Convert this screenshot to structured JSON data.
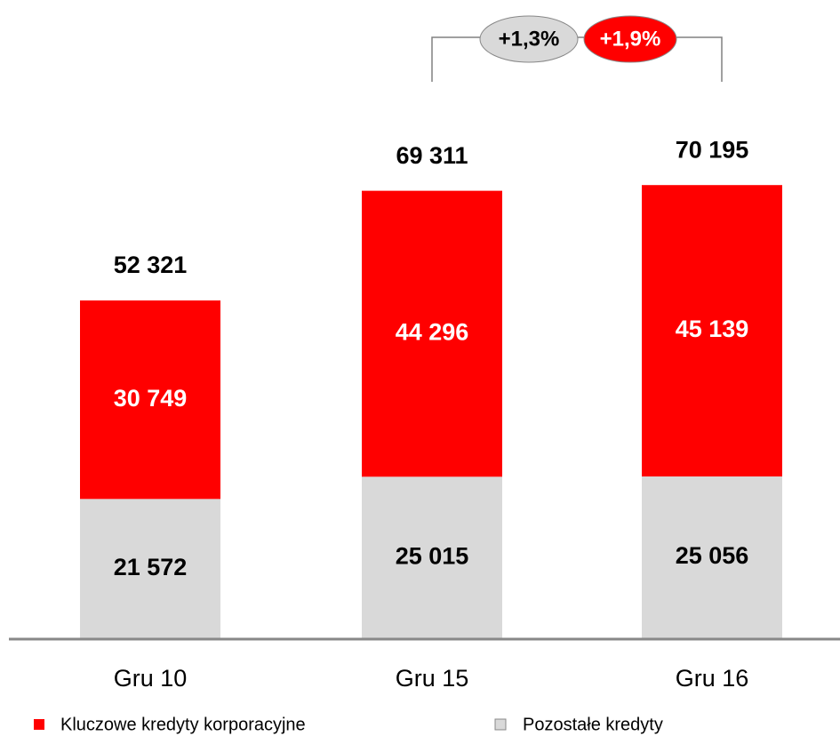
{
  "chart_data": {
    "type": "stacked_bar",
    "categories": [
      "Gru 10",
      "Gru 15",
      "Gru 16"
    ],
    "series": [
      {
        "name": "Kluczowe kredyty korporacyjne",
        "color": "#ff0000",
        "values": [
          30749,
          44296,
          45139
        ],
        "value_labels": [
          "30 749",
          "44 296",
          "45 139"
        ]
      },
      {
        "name": "Pozostałe kredyty",
        "color": "#d9d9d9",
        "values": [
          21572,
          25015,
          25056
        ],
        "value_labels": [
          "21 572",
          "25 015",
          "25 056"
        ]
      }
    ],
    "totals": [
      52321,
      69311,
      70195
    ],
    "total_labels": [
      "52 321",
      "69 311",
      "70 195"
    ],
    "annotations": [
      {
        "text": "+1,3%",
        "color": "#d9d9d9"
      },
      {
        "text": "+1,9%",
        "color": "#ff0000"
      }
    ],
    "ylim": [
      0,
      80000
    ]
  }
}
